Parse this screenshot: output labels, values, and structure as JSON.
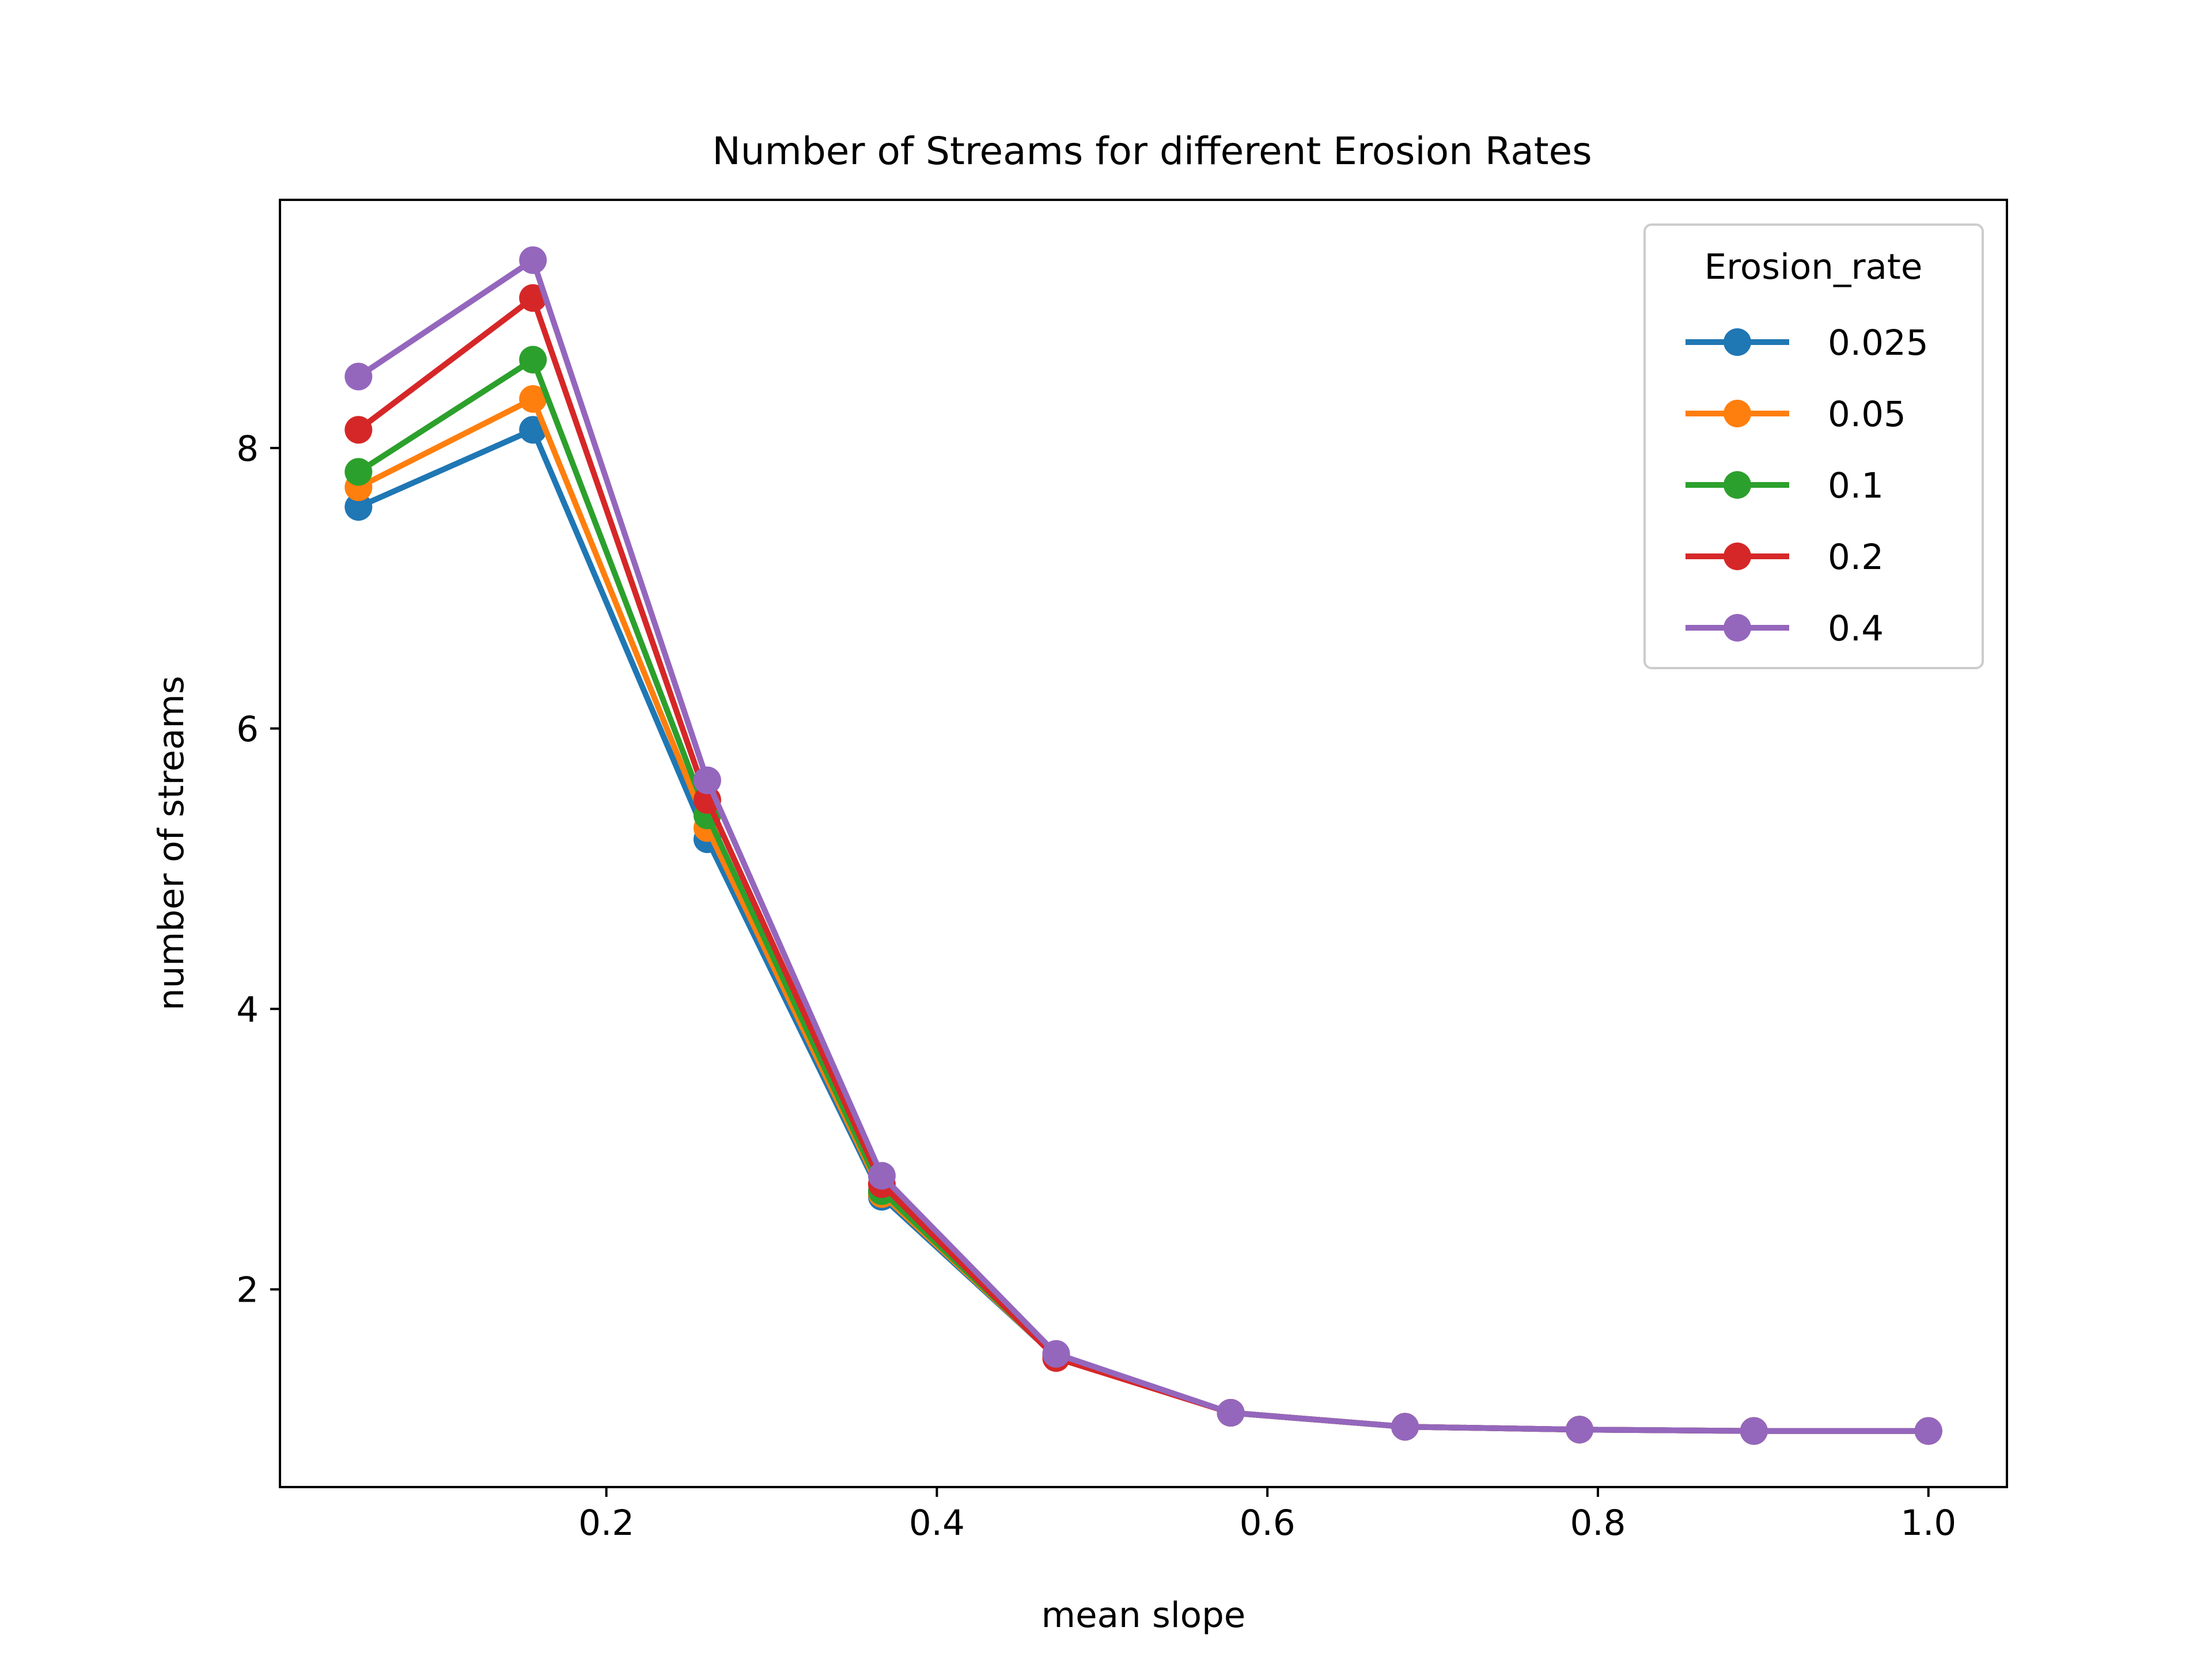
{
  "chart_data": {
    "type": "line",
    "title": "Number of Streams for different Erosion Rates",
    "xlabel": "mean slope",
    "ylabel": "number of streams",
    "x": [
      0.05,
      0.1556,
      0.2611,
      0.3667,
      0.4722,
      0.5778,
      0.6833,
      0.7889,
      0.8944,
      1.0
    ],
    "xlim": [
      0.0025,
      1.0475
    ],
    "ylim": [
      0.59,
      9.77
    ],
    "xticks": [
      0.2,
      0.4,
      0.6,
      0.8,
      1.0
    ],
    "xtick_labels": [
      "0.2",
      "0.4",
      "0.6",
      "0.8",
      "1.0"
    ],
    "yticks": [
      2,
      4,
      6,
      8
    ],
    "ytick_labels": [
      "2",
      "4",
      "6",
      "8"
    ],
    "grid": false,
    "legend": {
      "title": "Erosion_rate",
      "placement": "top-right"
    },
    "series": [
      {
        "name": "0.025",
        "color": "#1f77b4",
        "values": [
          7.58,
          8.13,
          5.21,
          2.66,
          1.52,
          1.12,
          1.02,
          1.0,
          0.99,
          0.99
        ]
      },
      {
        "name": "0.05",
        "color": "#ff7f0e",
        "values": [
          7.72,
          8.35,
          5.29,
          2.68,
          1.52,
          1.12,
          1.02,
          1.0,
          0.99,
          0.99
        ]
      },
      {
        "name": "0.1",
        "color": "#2ca02c",
        "values": [
          7.83,
          8.63,
          5.38,
          2.7,
          1.52,
          1.12,
          1.02,
          1.0,
          0.99,
          0.99
        ]
      },
      {
        "name": "0.2",
        "color": "#d62728",
        "values": [
          8.13,
          9.07,
          5.49,
          2.75,
          1.51,
          1.12,
          1.02,
          1.0,
          0.99,
          0.99
        ]
      },
      {
        "name": "0.4",
        "color": "#9467bd",
        "values": [
          8.51,
          9.34,
          5.63,
          2.81,
          1.54,
          1.12,
          1.02,
          1.0,
          0.99,
          0.99
        ]
      }
    ]
  }
}
